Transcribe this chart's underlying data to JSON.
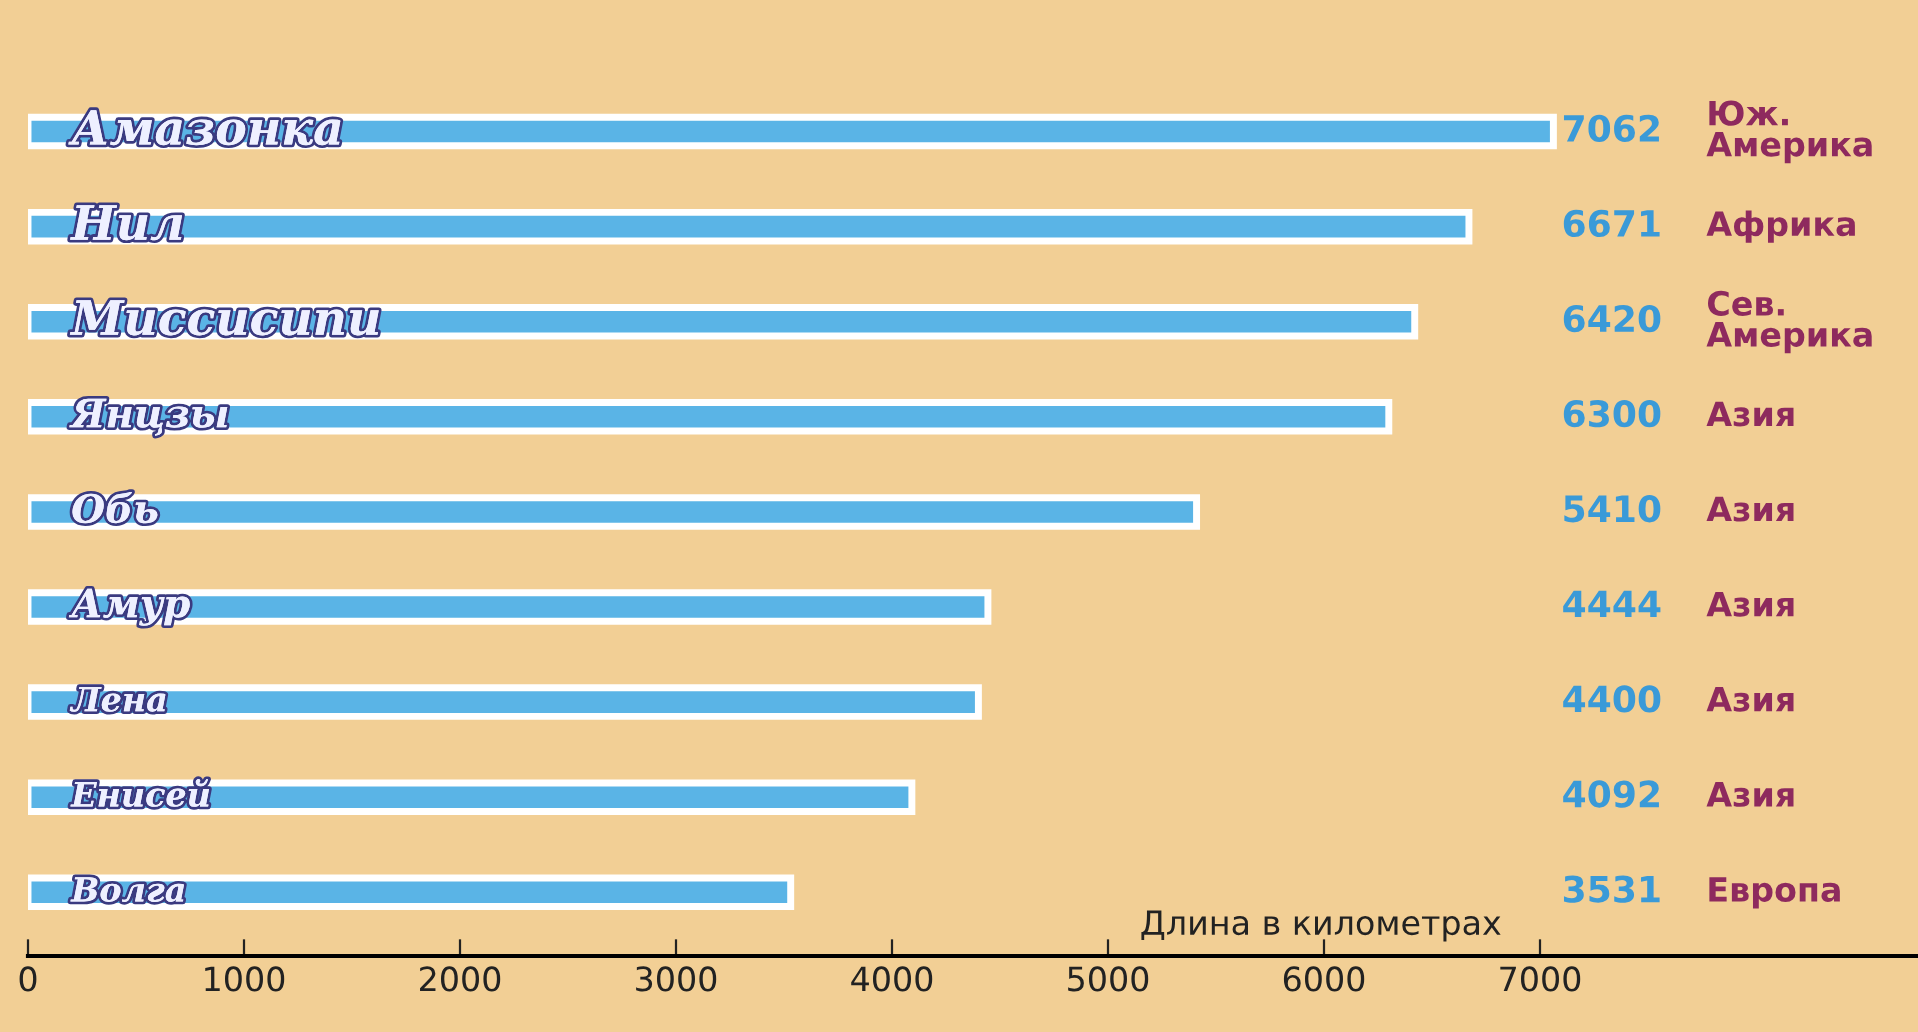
{
  "chart_data": {
    "type": "bar",
    "orientation": "horizontal",
    "xlabel": "Длина в километрах",
    "categories": [
      "Амазонка",
      "Нил",
      "Миссисипи",
      "Янцзы",
      "Обь",
      "Амур",
      "Лена",
      "Енисей",
      "Волга"
    ],
    "values": [
      7062,
      6671,
      6420,
      6300,
      5410,
      4444,
      4400,
      4092,
      3531
    ],
    "color": "#5ab4e6",
    "data_labels": true,
    "annotations": [
      "Юж.\nАмерика",
      "Африка",
      "Сев.\nАмерика",
      "Азия",
      "Азия",
      "Азия",
      "Азия",
      "Азия",
      "Европа"
    ],
    "xlim": [
      0,
      8750
    ],
    "xticks": [
      0,
      1000,
      2000,
      3000,
      4000,
      5000,
      6000,
      7000
    ],
    "grid": false,
    "legend": false
  }
}
